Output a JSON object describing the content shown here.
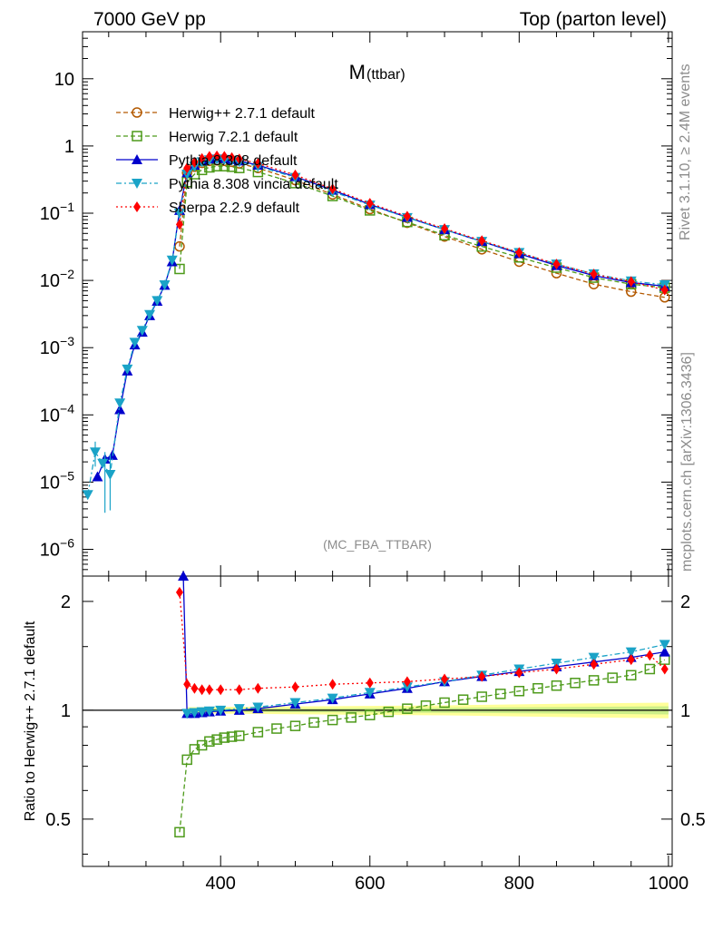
{
  "header": {
    "left": "7000 GeV pp",
    "right": "Top (parton level)"
  },
  "side_texts": {
    "rivet": "Rivet 3.1.10, ≥ 2.4M events",
    "mcplots": "mcplots.cern.ch [arXiv:1306.3436]"
  },
  "chart_data": [
    {
      "type": "line",
      "title_main": "M",
      "title_sub": "(ttbar)",
      "analysis_label": "(MC_FBA_TTBAR)",
      "xlim": [
        215,
        1005
      ],
      "ylim": [
        4e-07,
        50
      ],
      "yscale": "log",
      "x_ticks": [
        400,
        600,
        800,
        1000
      ],
      "y_ticks": [
        {
          "value": 10,
          "mantissa": "10",
          "exp": ""
        },
        {
          "value": 1,
          "mantissa": "1",
          "exp": ""
        },
        {
          "value": 0.1,
          "mantissa": "10",
          "exp": "−1"
        },
        {
          "value": 0.01,
          "mantissa": "10",
          "exp": "−2"
        },
        {
          "value": 0.001,
          "mantissa": "10",
          "exp": "−3"
        },
        {
          "value": 0.0001,
          "mantissa": "10",
          "exp": "−4"
        },
        {
          "value": 1e-05,
          "mantissa": "10",
          "exp": "−5"
        },
        {
          "value": 1e-06,
          "mantissa": "10",
          "exp": "−6"
        }
      ],
      "series": [
        {
          "name": "Herwig++ 2.7.1 default",
          "color": "#b35900",
          "marker": "circle-open",
          "dash": "5,3",
          "x": [
            345,
            355,
            365,
            375,
            385,
            395,
            405,
            415,
            425,
            450,
            500,
            550,
            600,
            650,
            700,
            750,
            800,
            850,
            900,
            950,
            995
          ],
          "y": [
            0.032,
            0.4,
            0.49,
            0.56,
            0.6,
            0.61,
            0.6,
            0.58,
            0.55,
            0.47,
            0.31,
            0.19,
            0.115,
            0.072,
            0.045,
            0.029,
            0.019,
            0.0128,
            0.0088,
            0.0068,
            0.0056
          ]
        },
        {
          "name": "Herwig 7.2.1 default",
          "color": "#4d9a1a",
          "marker": "square-open",
          "dash": "5,3",
          "x": [
            345,
            355,
            365,
            375,
            385,
            395,
            405,
            415,
            425,
            450,
            500,
            550,
            600,
            650,
            700,
            750,
            800,
            850,
            900,
            950,
            995
          ],
          "y": [
            0.0148,
            0.29,
            0.38,
            0.44,
            0.48,
            0.5,
            0.5,
            0.49,
            0.47,
            0.41,
            0.28,
            0.18,
            0.11,
            0.074,
            0.047,
            0.032,
            0.022,
            0.0155,
            0.011,
            0.0088,
            0.0078
          ]
        },
        {
          "name": "Pythia 8.308 default",
          "color": "#0000cc",
          "marker": "triangle-up",
          "dash": "",
          "x": [
            235,
            245,
            255,
            265,
            275,
            285,
            295,
            305,
            315,
            325,
            335,
            345,
            355,
            365,
            375,
            385,
            395,
            405,
            415,
            425,
            450,
            500,
            550,
            600,
            650,
            700,
            750,
            800,
            850,
            900,
            950,
            995
          ],
          "y": [
            1.2e-05,
            2.2e-05,
            2.5e-05,
            0.00012,
            0.00045,
            0.0011,
            0.0017,
            0.003,
            0.0049,
            0.0085,
            0.019,
            0.11,
            0.4,
            0.52,
            0.6,
            0.64,
            0.66,
            0.65,
            0.63,
            0.6,
            0.52,
            0.35,
            0.22,
            0.135,
            0.087,
            0.057,
            0.038,
            0.025,
            0.0167,
            0.0118,
            0.0093,
            0.0082
          ]
        },
        {
          "name": "Pythia 8.308 vincia default",
          "color": "#1aa3c7",
          "marker": "triangle-down",
          "dash": "6,3,2,3",
          "x": [
            222,
            232,
            242,
            252,
            265,
            275,
            285,
            295,
            305,
            315,
            325,
            335,
            345,
            355,
            365,
            375,
            385,
            395,
            405,
            415,
            425,
            450,
            500,
            550,
            600,
            650,
            700,
            750,
            800,
            850,
            900,
            950,
            995
          ],
          "y": [
            6.5e-06,
            2.8e-05,
            1.9e-05,
            1.3e-05,
            0.00015,
            0.00048,
            0.0012,
            0.0018,
            0.0031,
            0.005,
            0.0086,
            0.02,
            0.1,
            0.38,
            0.5,
            0.58,
            0.62,
            0.64,
            0.63,
            0.61,
            0.58,
            0.5,
            0.34,
            0.21,
            0.132,
            0.086,
            0.057,
            0.038,
            0.026,
            0.0175,
            0.0125,
            0.0098,
            0.0086
          ]
        },
        {
          "name": "Sherpa 2.2.9 default",
          "color": "#ff0000",
          "marker": "diamond",
          "dash": "2,3",
          "x": [
            345,
            355,
            365,
            375,
            385,
            395,
            405,
            415,
            425,
            450,
            500,
            550,
            600,
            650,
            700,
            750,
            800,
            850,
            900,
            950,
            995
          ],
          "y": [
            0.068,
            0.47,
            0.57,
            0.65,
            0.7,
            0.71,
            0.7,
            0.67,
            0.64,
            0.55,
            0.37,
            0.23,
            0.14,
            0.09,
            0.059,
            0.039,
            0.026,
            0.0175,
            0.0124,
            0.0096,
            0.0072
          ]
        }
      ]
    },
    {
      "type": "line",
      "ylabel": "Ratio to Herwig++ 2.7.1 default",
      "xlim": [
        215,
        1005
      ],
      "ylim": [
        0.37,
        2.35
      ],
      "yscale": "log",
      "x_ticks": [
        400,
        600,
        800,
        1000
      ],
      "y_ticks": [
        0.5,
        1,
        2
      ],
      "y_tick_labels": [
        "0.5",
        "1",
        "2"
      ],
      "reference": 1,
      "band": {
        "x": [
          355,
          500,
          700,
          900,
          1000
        ],
        "inner": [
          0.01,
          0.012,
          0.016,
          0.022,
          0.026
        ],
        "outer": [
          0.02,
          0.025,
          0.032,
          0.045,
          0.05
        ]
      },
      "series": [
        {
          "name": "Herwig 7.2.1 default",
          "color": "#4d9a1a",
          "marker": "square-open",
          "dash": "5,3",
          "x": [
            345,
            355,
            365,
            375,
            385,
            395,
            405,
            415,
            425,
            450,
            475,
            500,
            525,
            550,
            575,
            600,
            625,
            650,
            675,
            700,
            725,
            750,
            775,
            800,
            825,
            850,
            875,
            900,
            925,
            950,
            975,
            995
          ],
          "y": [
            0.46,
            0.73,
            0.78,
            0.8,
            0.82,
            0.83,
            0.84,
            0.845,
            0.85,
            0.87,
            0.89,
            0.905,
            0.925,
            0.94,
            0.955,
            0.97,
            0.99,
            1.01,
            1.03,
            1.05,
            1.07,
            1.09,
            1.11,
            1.13,
            1.15,
            1.17,
            1.19,
            1.21,
            1.23,
            1.25,
            1.3,
            1.38
          ]
        },
        {
          "name": "Pythia 8.308 default",
          "color": "#0000cc",
          "marker": "triangle-up",
          "dash": "",
          "x": [
            350,
            355,
            365,
            375,
            385,
            400,
            425,
            450,
            500,
            550,
            600,
            650,
            700,
            750,
            800,
            850,
            900,
            950,
            995
          ],
          "y": [
            2.35,
            0.98,
            0.98,
            0.985,
            0.99,
            0.995,
            1.0,
            1.01,
            1.04,
            1.07,
            1.11,
            1.15,
            1.2,
            1.24,
            1.28,
            1.32,
            1.36,
            1.4,
            1.45
          ]
        },
        {
          "name": "Pythia 8.308 vincia default",
          "color": "#1aa3c7",
          "marker": "triangle-down",
          "dash": "6,3,2,3",
          "x": [
            355,
            365,
            375,
            385,
            400,
            425,
            450,
            500,
            550,
            600,
            650,
            700,
            750,
            800,
            850,
            900,
            950,
            995
          ],
          "y": [
            0.98,
            0.985,
            0.99,
            0.995,
            1.0,
            1.01,
            1.02,
            1.05,
            1.08,
            1.12,
            1.16,
            1.2,
            1.25,
            1.3,
            1.35,
            1.4,
            1.45,
            1.52
          ]
        },
        {
          "name": "Sherpa 2.2.9 default",
          "color": "#ff0000",
          "marker": "diamond",
          "dash": "2,3",
          "x": [
            345,
            355,
            365,
            375,
            385,
            400,
            425,
            450,
            500,
            550,
            600,
            650,
            700,
            750,
            800,
            850,
            900,
            950,
            975,
            995
          ],
          "y": [
            2.12,
            1.18,
            1.15,
            1.14,
            1.14,
            1.14,
            1.14,
            1.15,
            1.16,
            1.18,
            1.19,
            1.2,
            1.22,
            1.24,
            1.27,
            1.3,
            1.34,
            1.38,
            1.42,
            1.3
          ]
        }
      ]
    }
  ]
}
